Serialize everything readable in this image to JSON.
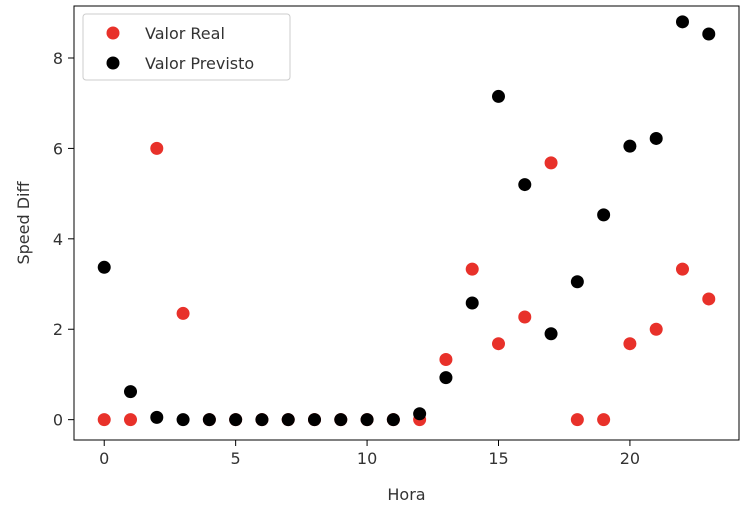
{
  "chart_data": {
    "type": "scatter",
    "xlabel": "Hora",
    "ylabel": "Speed Diff",
    "xlim": [
      -1.15,
      24.15
    ],
    "ylim": [
      -0.45,
      9.15
    ],
    "xticks": [
      0,
      5,
      10,
      15,
      20
    ],
    "yticks": [
      0,
      2,
      4,
      6,
      8
    ],
    "grid": false,
    "legend_position": "top-left",
    "series": [
      {
        "name": "Valor Real",
        "color": "#e8312a",
        "x": [
          0,
          1,
          2,
          3,
          4,
          5,
          6,
          7,
          8,
          9,
          10,
          11,
          12,
          13,
          14,
          15,
          16,
          17,
          18,
          19,
          20,
          21,
          22,
          23
        ],
        "y": [
          0,
          0,
          6,
          2.35,
          0,
          0,
          0,
          0,
          0,
          0,
          0,
          0,
          0,
          1.33,
          3.33,
          1.68,
          2.27,
          5.68,
          0,
          0,
          1.68,
          2.0,
          3.33,
          2.67
        ]
      },
      {
        "name": "Valor Previsto",
        "color": "#000000",
        "x": [
          0,
          1,
          2,
          3,
          4,
          5,
          6,
          7,
          8,
          9,
          10,
          11,
          12,
          13,
          14,
          15,
          16,
          17,
          18,
          19,
          20,
          21,
          22,
          23
        ],
        "y": [
          3.37,
          0.62,
          0.05,
          0,
          0,
          0,
          0,
          0,
          0,
          0,
          0,
          0,
          0.13,
          0.93,
          2.58,
          7.15,
          5.2,
          1.9,
          3.05,
          4.53,
          6.05,
          6.22,
          8.8,
          8.53
        ]
      }
    ]
  }
}
